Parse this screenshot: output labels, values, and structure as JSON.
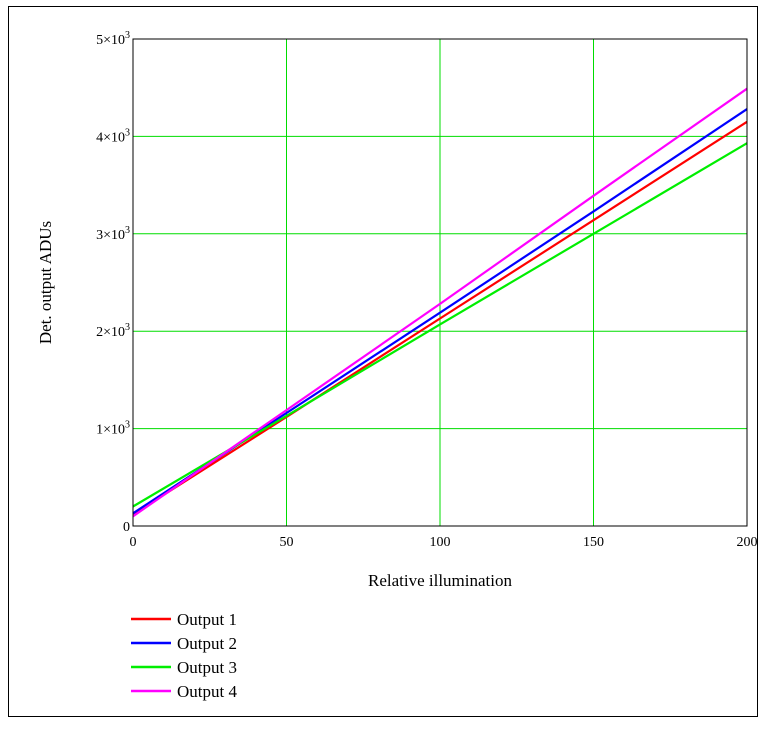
{
  "chart_data": {
    "type": "line",
    "xlabel": "Relative illumination",
    "ylabel": "Det. output ADUs",
    "xlim": [
      0,
      200
    ],
    "ylim": [
      0,
      5000
    ],
    "x_ticks": [
      "0",
      "50",
      "100",
      "150",
      "200"
    ],
    "y_ticks": [
      {
        "mantissa": "0",
        "exp": ""
      },
      {
        "mantissa": "1×10",
        "exp": "3"
      },
      {
        "mantissa": "2×10",
        "exp": "3"
      },
      {
        "mantissa": "3×10",
        "exp": "3"
      },
      {
        "mantissa": "4×10",
        "exp": "3"
      },
      {
        "mantissa": "5×10",
        "exp": "3"
      }
    ],
    "grid": true,
    "grid_color": "#00dd00",
    "legend_position": "bottom-left",
    "series": [
      {
        "name": "Output 1",
        "color": "#ff0000",
        "x": [
          0,
          50,
          100,
          150,
          200
        ],
        "y": [
          120,
          1120,
          2130,
          3140,
          4150
        ]
      },
      {
        "name": "Output 2",
        "color": "#0000ff",
        "x": [
          0,
          50,
          100,
          150,
          200
        ],
        "y": [
          130,
          1160,
          2190,
          3230,
          4280
        ]
      },
      {
        "name": "Output 3",
        "color": "#00ee00",
        "x": [
          0,
          50,
          100,
          150,
          200
        ],
        "y": [
          200,
          1130,
          2070,
          3000,
          3930
        ]
      },
      {
        "name": "Output 4",
        "color": "#ff00ff",
        "x": [
          0,
          50,
          100,
          150,
          200
        ],
        "y": [
          100,
          1190,
          2280,
          3390,
          4490
        ]
      }
    ]
  }
}
